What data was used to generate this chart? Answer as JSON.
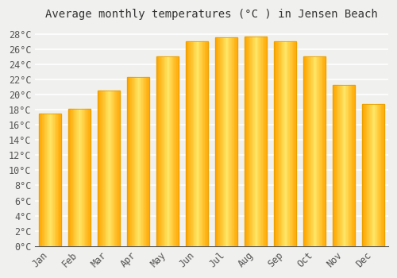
{
  "title": "Average monthly temperatures (°C ) in Jensen Beach",
  "months": [
    "Jan",
    "Feb",
    "Mar",
    "Apr",
    "May",
    "Jun",
    "Jul",
    "Aug",
    "Sep",
    "Oct",
    "Nov",
    "Dec"
  ],
  "values": [
    17.5,
    18.1,
    20.5,
    22.3,
    25.0,
    27.0,
    27.6,
    27.7,
    27.0,
    25.0,
    21.3,
    18.7
  ],
  "bar_color_top": "#FFC200",
  "bar_color_mid": "#FFD966",
  "bar_color_bottom": "#FFA500",
  "bar_edge_color": "#E8A000",
  "ylim": [
    0,
    29
  ],
  "yticks": [
    0,
    2,
    4,
    6,
    8,
    10,
    12,
    14,
    16,
    18,
    20,
    22,
    24,
    26,
    28
  ],
  "background_color": "#F0F0EE",
  "grid_color": "#FFFFFF",
  "title_fontsize": 10,
  "tick_fontsize": 8.5,
  "bar_width": 0.75
}
